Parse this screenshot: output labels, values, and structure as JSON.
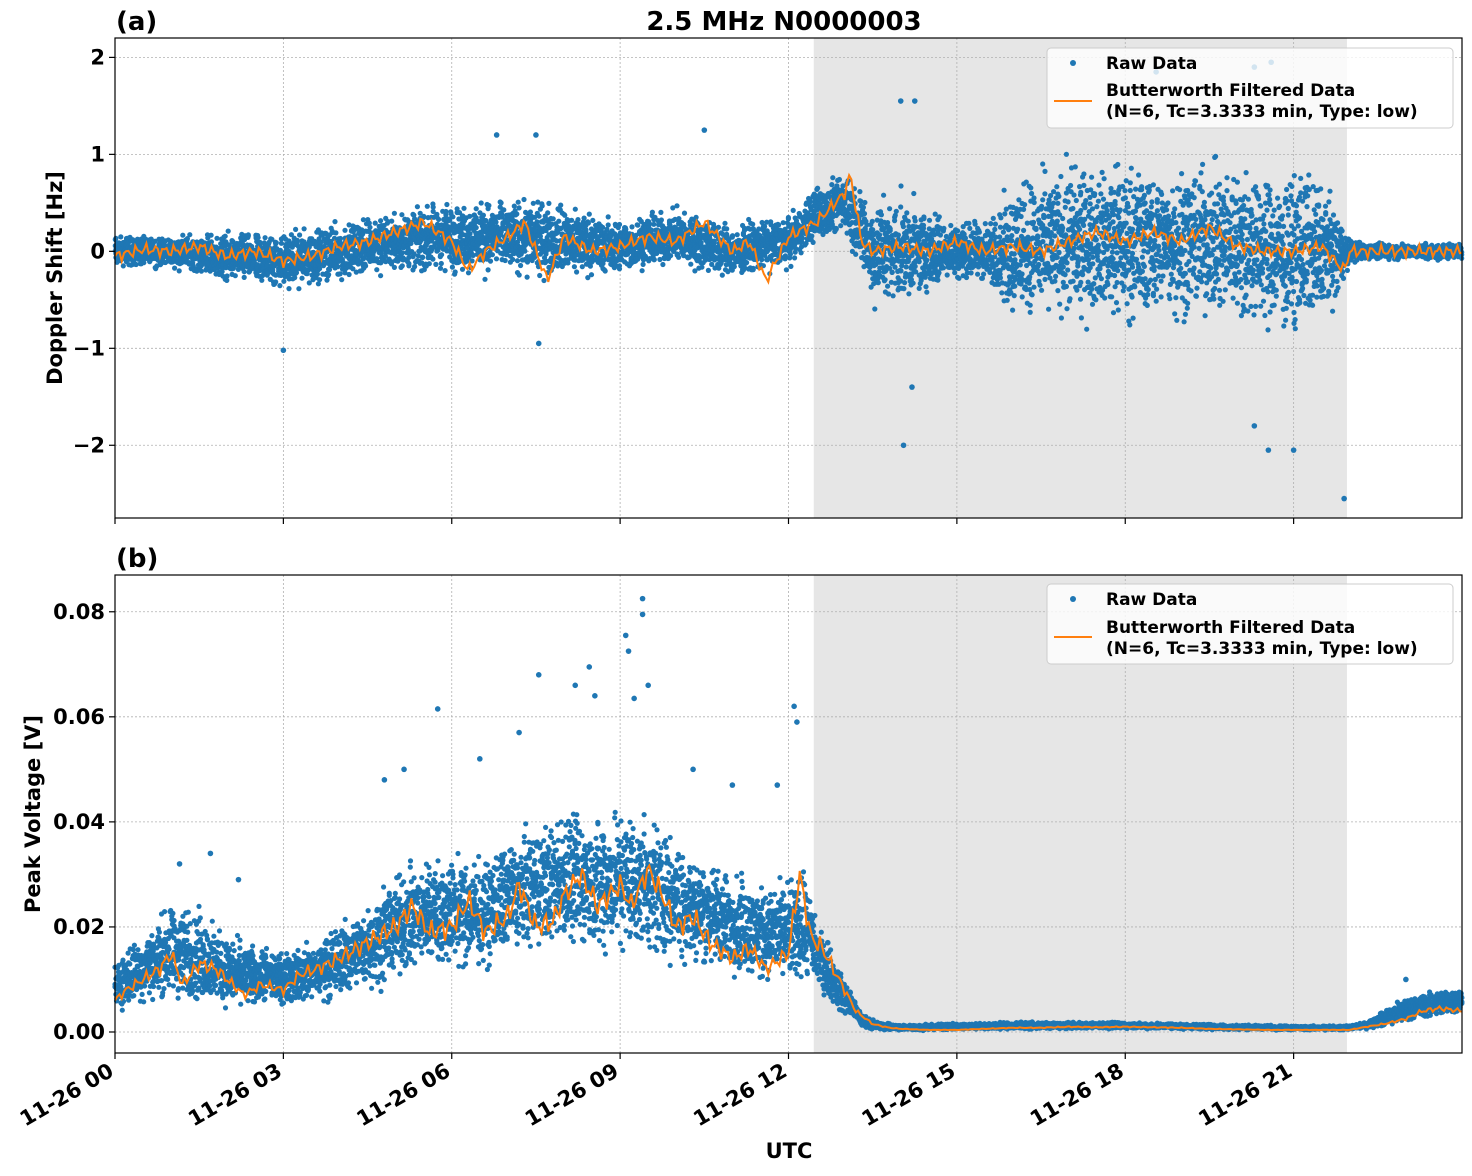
{
  "chart_data": {
    "title": "2.5 MHz N0000003",
    "xlabel": "UTC",
    "x_tick_labels": [
      "11-26 00",
      "11-26 03",
      "11-26 06",
      "11-26 09",
      "11-26 12",
      "11-26 15",
      "11-26 18",
      "11-26 21"
    ],
    "x_range_hours": [
      0,
      24
    ],
    "shaded_interval_hours": [
      12.45,
      21.95
    ],
    "shaded_color": "#e6e6e6",
    "grid": true,
    "legend": {
      "placement": "top-right",
      "raw_label": "Raw Data",
      "filtered_label_line1": "Butterworth Filtered Data",
      "filtered_label_line2": "(N=6, Tc=3.3333 min, Type: low)"
    },
    "colors": {
      "raw": "#1f77b4",
      "filtered": "#ff7f0e"
    },
    "panels": [
      {
        "panel_label": "(a)",
        "type": "scatter+line",
        "ylabel": "Doppler Shift [Hz]",
        "ylim": [
          -2.75,
          2.2
        ],
        "y_ticks": [
          2,
          1,
          0,
          -1,
          -2
        ],
        "y_tick_labels": [
          "2",
          "1",
          "0",
          "−1",
          "−2"
        ],
        "series": [
          {
            "name": "Raw Data",
            "style": "points",
            "envelope_hours": [
              0,
              1,
              2,
              3,
              4,
              5,
              6,
              7,
              8,
              9,
              10,
              11,
              12,
              12.5,
              13,
              13.5,
              14,
              15,
              15.6,
              16,
              17,
              18,
              19,
              20,
              21,
              21.5,
              22,
              22.5,
              23,
              24
            ],
            "envelope_center": [
              0,
              0,
              -0.05,
              -0.1,
              0,
              0.1,
              0.15,
              0.15,
              0.1,
              0.05,
              0.15,
              0,
              0.1,
              0.4,
              0.5,
              0,
              0,
              0,
              0,
              0,
              0.1,
              0.1,
              0.1,
              0.1,
              0,
              0,
              0,
              0,
              0,
              0
            ],
            "envelope_halfwidth": [
              0.2,
              0.2,
              0.3,
              0.35,
              0.35,
              0.4,
              0.45,
              0.5,
              0.45,
              0.35,
              0.35,
              0.35,
              0.3,
              0.35,
              0.35,
              0.7,
              0.7,
              0.35,
              0.4,
              0.9,
              1.0,
              1.0,
              1.0,
              1.0,
              1.1,
              1.0,
              0.15,
              0.1,
              0.1,
              0.1
            ],
            "outliers": [
              [
                6.8,
                1.2
              ],
              [
                7.5,
                1.2
              ],
              [
                10.5,
                1.25
              ],
              [
                14.0,
                1.55
              ],
              [
                14.25,
                1.55
              ],
              [
                18.55,
                1.85
              ],
              [
                20.3,
                1.9
              ],
              [
                20.6,
                1.95
              ],
              [
                14.05,
                -2.0
              ],
              [
                20.55,
                -2.05
              ],
              [
                21.0,
                -2.05
              ],
              [
                21.9,
                -2.55
              ],
              [
                3.0,
                -1.02
              ],
              [
                7.55,
                -0.95
              ],
              [
                14.2,
                -1.4
              ],
              [
                20.3,
                -1.8
              ]
            ]
          },
          {
            "name": "Butterworth Filtered Data (N=6, Tc=3.3333 min, Type: low)",
            "style": "line",
            "x_hours": [
              0,
              0.5,
              1,
              1.5,
              2,
              2.5,
              3,
              3.5,
              4,
              4.5,
              5,
              5.5,
              6,
              6.3,
              6.6,
              7,
              7.3,
              7.5,
              7.7,
              8,
              8.5,
              9,
              9.5,
              10,
              10.5,
              11,
              11.3,
              11.6,
              12,
              12.5,
              13,
              13.1,
              13.3,
              13.5,
              14,
              14.5,
              15,
              15.5,
              16,
              16.5,
              17,
              17.5,
              18,
              18.5,
              19,
              19.5,
              20,
              20.5,
              21,
              21.5,
              21.9,
              22,
              22.5,
              23,
              23.5,
              24
            ],
            "y_values": [
              -0.05,
              0.02,
              0.0,
              0.05,
              -0.05,
              0.0,
              -0.1,
              -0.05,
              0.05,
              0.1,
              0.2,
              0.3,
              0.1,
              -0.2,
              0.0,
              0.15,
              0.3,
              0.0,
              -0.3,
              0.15,
              0.0,
              0.05,
              0.15,
              0.1,
              0.3,
              0.0,
              0.1,
              -0.3,
              0.15,
              0.3,
              0.6,
              0.8,
              0.1,
              0.0,
              0.05,
              0.0,
              0.1,
              0.0,
              0.05,
              0.0,
              0.1,
              0.2,
              0.1,
              0.2,
              0.1,
              0.25,
              0.05,
              0.0,
              0.0,
              0.05,
              -0.2,
              0.0,
              0.0,
              0.0,
              0.0,
              0.0
            ]
          }
        ]
      },
      {
        "panel_label": "(b)",
        "type": "scatter+line",
        "ylabel": "Peak Voltage [V]",
        "ylim": [
          -0.004,
          0.087
        ],
        "y_ticks": [
          0.08,
          0.06,
          0.04,
          0.02,
          0.0
        ],
        "y_tick_labels": [
          "0.08",
          "0.06",
          "0.04",
          "0.02",
          "0.00"
        ],
        "series": [
          {
            "name": "Raw Data",
            "style": "points",
            "envelope_hours": [
              0,
              0.5,
              1,
              1.5,
              2,
              2.5,
              3,
              3.5,
              4,
              4.5,
              5,
              5.5,
              6,
              6.5,
              7,
              7.5,
              8,
              8.5,
              9,
              9.5,
              10,
              10.5,
              11,
              11.5,
              12,
              12.3,
              12.6,
              13,
              13.3,
              13.6,
              14,
              16,
              18,
              20,
              21.9,
              22.3,
              22.8,
              23.3,
              24
            ],
            "envelope_low": [
              0.003,
              0.004,
              0.004,
              0.003,
              0.003,
              0.003,
              0.004,
              0.004,
              0.005,
              0.006,
              0.008,
              0.009,
              0.01,
              0.01,
              0.011,
              0.012,
              0.013,
              0.012,
              0.012,
              0.011,
              0.011,
              0.01,
              0.009,
              0.008,
              0.008,
              0.007,
              0.006,
              0.002,
              0.0005,
              0.0002,
              0.0002,
              0.0004,
              0.0005,
              0.0003,
              0.0003,
              0.0005,
              0.001,
              0.002,
              0.003
            ],
            "envelope_high": [
              0.014,
              0.02,
              0.027,
              0.025,
              0.02,
              0.018,
              0.017,
              0.018,
              0.022,
              0.027,
              0.032,
              0.036,
              0.036,
              0.035,
              0.04,
              0.043,
              0.045,
              0.044,
              0.046,
              0.045,
              0.04,
              0.035,
              0.033,
              0.03,
              0.03,
              0.033,
              0.02,
              0.012,
              0.004,
              0.002,
              0.0015,
              0.002,
              0.002,
              0.0015,
              0.0012,
              0.002,
              0.006,
              0.008,
              0.009
            ],
            "outliers": [
              [
                1.15,
                0.032
              ],
              [
                1.7,
                0.034
              ],
              [
                2.2,
                0.029
              ],
              [
                4.8,
                0.048
              ],
              [
                5.15,
                0.05
              ],
              [
                5.75,
                0.0615
              ],
              [
                6.5,
                0.052
              ],
              [
                7.2,
                0.057
              ],
              [
                7.55,
                0.068
              ],
              [
                8.2,
                0.066
              ],
              [
                8.45,
                0.0695
              ],
              [
                8.55,
                0.064
              ],
              [
                9.1,
                0.0755
              ],
              [
                9.15,
                0.0725
              ],
              [
                9.25,
                0.0635
              ],
              [
                9.4,
                0.0825
              ],
              [
                9.4,
                0.0795
              ],
              [
                9.5,
                0.066
              ],
              [
                10.3,
                0.05
              ],
              [
                11.0,
                0.047
              ],
              [
                11.8,
                0.047
              ],
              [
                12.1,
                0.062
              ],
              [
                12.15,
                0.059
              ],
              [
                12.7,
                0.017
              ],
              [
                13.1,
                0.0075
              ],
              [
                23.0,
                0.01
              ]
            ]
          },
          {
            "name": "Butterworth Filtered Data (N=6, Tc=3.3333 min, Type: low)",
            "style": "line",
            "x_hours": [
              0,
              0.2,
              0.5,
              0.8,
              1,
              1.2,
              1.5,
              1.8,
              2,
              2.3,
              2.6,
              3,
              3.3,
              3.6,
              4,
              4.5,
              5,
              5.3,
              5.6,
              6,
              6.3,
              6.6,
              7,
              7.2,
              7.5,
              7.8,
              8,
              8.3,
              8.6,
              9,
              9.2,
              9.5,
              9.8,
              10,
              10.3,
              10.6,
              11,
              11.3,
              11.6,
              12,
              12.2,
              12.4,
              12.6,
              12.8,
              13,
              13.2,
              13.5,
              13.8,
              14,
              14.5,
              15,
              15.5,
              16,
              16.5,
              17,
              17.5,
              18,
              18.5,
              19,
              19.5,
              20,
              20.5,
              21,
              21.5,
              22,
              22.3,
              22.6,
              22.8,
              23,
              23.3,
              23.6,
              24
            ],
            "y_values": [
              0.006,
              0.008,
              0.01,
              0.012,
              0.015,
              0.009,
              0.013,
              0.012,
              0.01,
              0.007,
              0.009,
              0.008,
              0.011,
              0.012,
              0.014,
              0.017,
              0.02,
              0.024,
              0.019,
              0.02,
              0.025,
              0.019,
              0.022,
              0.028,
              0.02,
              0.021,
              0.026,
              0.03,
              0.024,
              0.028,
              0.024,
              0.031,
              0.025,
              0.02,
              0.022,
              0.017,
              0.014,
              0.016,
              0.012,
              0.015,
              0.03,
              0.018,
              0.016,
              0.012,
              0.008,
              0.004,
              0.0015,
              0.0008,
              0.0006,
              0.0004,
              0.0004,
              0.0006,
              0.0008,
              0.0008,
              0.001,
              0.0009,
              0.001,
              0.0009,
              0.0008,
              0.0006,
              0.0005,
              0.0004,
              0.0004,
              0.0004,
              0.0004,
              0.001,
              0.0015,
              0.002,
              0.0025,
              0.004,
              0.0045,
              0.004
            ]
          }
        ]
      }
    ]
  }
}
